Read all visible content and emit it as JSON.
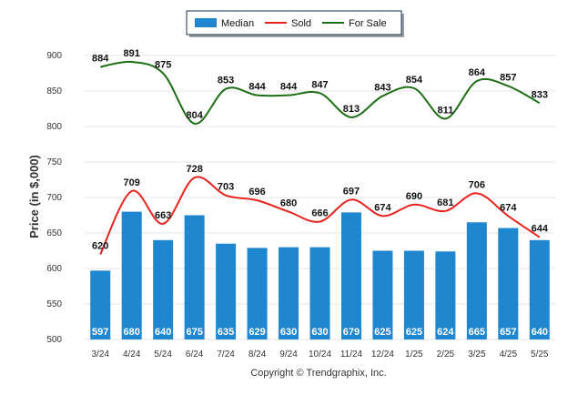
{
  "chart_data": {
    "type": "bar",
    "ylabel": "Price (in $,000)",
    "ylim": [
      500,
      900
    ],
    "yticks": [
      500,
      550,
      600,
      650,
      700,
      750,
      800,
      850,
      900
    ],
    "categories": [
      "3/24",
      "4/24",
      "5/24",
      "6/24",
      "7/24",
      "8/24",
      "9/24",
      "10/24",
      "11/24",
      "12/24",
      "1/25",
      "2/25",
      "3/25",
      "4/25",
      "5/25"
    ],
    "series": [
      {
        "name": "Median",
        "kind": "bar",
        "color": "#1f86d0",
        "values": [
          597,
          680,
          640,
          675,
          635,
          629,
          630,
          630,
          679,
          625,
          625,
          624,
          665,
          657,
          640
        ]
      },
      {
        "name": "Sold",
        "kind": "line",
        "color": "#e8231d",
        "values": [
          620,
          709,
          663,
          728,
          703,
          696,
          680,
          666,
          697,
          674,
          690,
          681,
          706,
          674,
          644
        ]
      },
      {
        "name": "For Sale",
        "kind": "line",
        "color": "#1e6e16",
        "values": [
          884,
          891,
          875,
          804,
          853,
          844,
          844,
          847,
          813,
          843,
          854,
          811,
          864,
          857,
          833
        ]
      }
    ],
    "legend_position": "top-center",
    "grid": true
  },
  "footer": "Copyright © Trendgraphix, Inc."
}
